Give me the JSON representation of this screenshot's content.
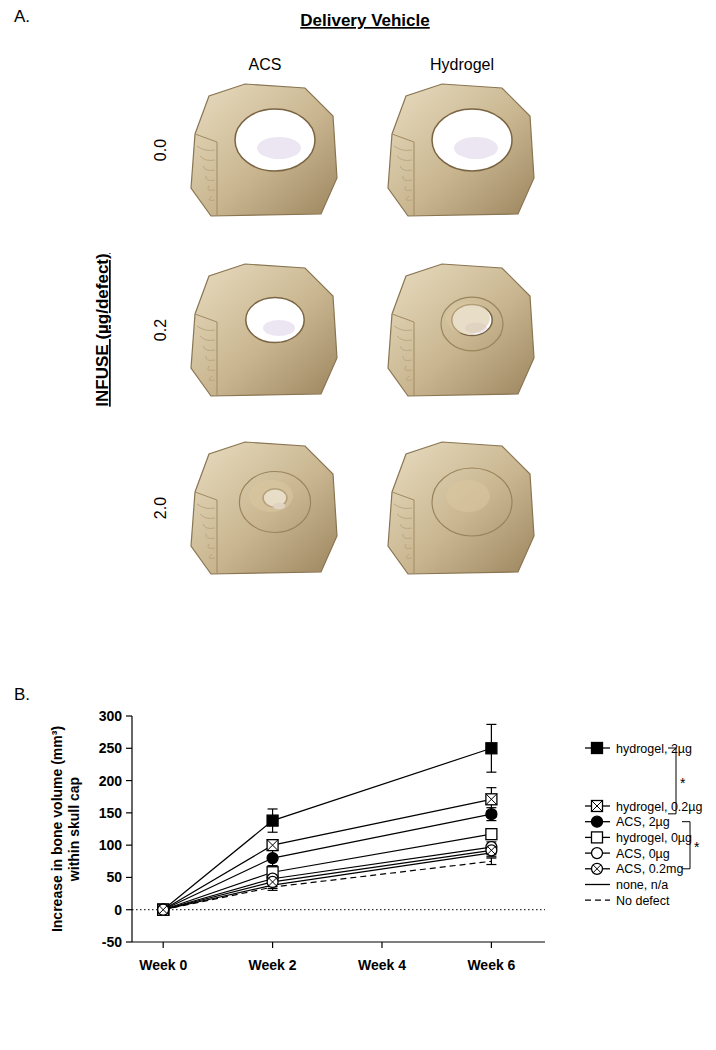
{
  "panel_labels": [
    "A.",
    "B."
  ],
  "panel_a": {
    "title": "Delivery Vehicle",
    "columns": [
      "ACS",
      "Hydrogel"
    ],
    "row_axis_label": "INFUSE (µg/defect)",
    "rows": [
      "0.0",
      "0.2",
      "2.0"
    ]
  },
  "chart_data": {
    "type": "line",
    "ylabel": [
      "Increase in bone volume (mm³)",
      "within skull cap"
    ],
    "x": [
      0,
      2,
      6
    ],
    "xlim": [
      -0.57,
      6.98
    ],
    "xticks": [
      {
        "value": 0,
        "label": "Week 0"
      },
      {
        "value": 2,
        "label": "Week 2"
      },
      {
        "value": 4,
        "label": "Week 4"
      },
      {
        "value": 6,
        "label": "Week 6"
      }
    ],
    "ylim": [
      -50,
      300
    ],
    "yticks": [
      -50,
      0,
      50,
      100,
      150,
      200,
      250,
      300
    ],
    "hlines": [
      0
    ],
    "grid": false,
    "legend": "right",
    "series": [
      {
        "name": "hydrogel, 2µg",
        "color": "#000000",
        "marker": "filled-square",
        "line_style": "solid",
        "values": [
          0,
          138,
          250
        ],
        "errors": [
          0,
          18,
          37
        ]
      },
      {
        "name": "hydrogel, 0.2µg",
        "color": "#000000",
        "marker": "crossed-square",
        "line_style": "solid",
        "values": [
          0,
          100,
          171
        ],
        "errors": [
          0,
          8,
          18
        ]
      },
      {
        "name": "ACS, 2µg",
        "color": "#000000",
        "marker": "filled-circle",
        "line_style": "solid",
        "values": [
          0,
          80,
          148
        ],
        "errors": [
          0,
          12,
          10
        ]
      },
      {
        "name": "hydrogel, 0µg",
        "color": "#000000",
        "marker": "open-square",
        "line_style": "solid",
        "values": [
          0,
          58,
          117
        ],
        "errors": [
          0,
          10,
          8
        ]
      },
      {
        "name": "ACS, 0µg",
        "color": "#000000",
        "marker": "open-circle",
        "line_style": "solid",
        "values": [
          0,
          48,
          97
        ],
        "errors": [
          0,
          8,
          8
        ]
      },
      {
        "name": "ACS, 0.2mg",
        "color": "#000000",
        "marker": "crossed-circle",
        "line_style": "solid",
        "values": [
          0,
          43,
          92
        ],
        "errors": [
          0,
          7,
          7
        ]
      },
      {
        "name": "none, n/a",
        "color": "#000000",
        "marker": "none",
        "line_style": "solid",
        "values": [
          0,
          38,
          88
        ],
        "errors": [
          0,
          5,
          6
        ]
      },
      {
        "name": "No defect",
        "color": "#000000",
        "marker": "none",
        "line_style": "dashed",
        "values": [
          0,
          35,
          75
        ],
        "errors": [
          0,
          5,
          5
        ]
      }
    ],
    "annotations": [
      {
        "text": "*",
        "from": 0,
        "to": 2
      },
      {
        "text": "*",
        "from": 2,
        "to": 5
      }
    ]
  }
}
